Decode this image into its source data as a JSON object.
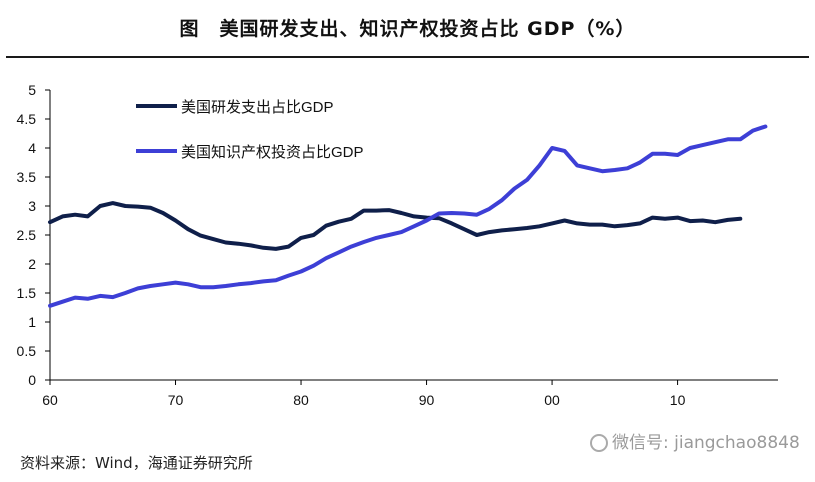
{
  "title": "图　美国研发支出、知识产权投资占比 GDP（%）",
  "source": "资料来源：Wind，海通证券研究所",
  "watermark": "微信号: jiangchao8848",
  "colors": {
    "rd": "#0f1f4a",
    "ip": "#3d3fd6",
    "axis": "#000000"
  },
  "chart_data": {
    "type": "line",
    "title": "美国研发支出、知识产权投资占比 GDP（%）",
    "xlabel": "",
    "ylabel": "",
    "xlim": [
      1960,
      2018
    ],
    "ylim": [
      0,
      5
    ],
    "x_ticks": [
      1960,
      1970,
      1980,
      1990,
      2000,
      2010
    ],
    "x_tick_labels": [
      "60",
      "70",
      "80",
      "90",
      "00",
      "10"
    ],
    "y_ticks": [
      0,
      0.5,
      1,
      1.5,
      2,
      2.5,
      3,
      3.5,
      4,
      4.5,
      5
    ],
    "y_tick_labels": [
      "0",
      "0.5",
      "1",
      "1.5",
      "2",
      "2.5",
      "3",
      "3.5",
      "4",
      "4.5",
      "5"
    ],
    "grid": false,
    "legend": "top-left",
    "series": [
      {
        "name": "美国研发支出占比GDP",
        "color": "#0f1f4a",
        "x": [
          1960,
          1961,
          1962,
          1963,
          1964,
          1965,
          1966,
          1967,
          1968,
          1969,
          1970,
          1971,
          1972,
          1973,
          1974,
          1975,
          1976,
          1977,
          1978,
          1979,
          1980,
          1981,
          1982,
          1983,
          1984,
          1985,
          1986,
          1987,
          1988,
          1989,
          1990,
          1991,
          1992,
          1993,
          1994,
          1995,
          1996,
          1997,
          1998,
          1999,
          2000,
          2001,
          2002,
          2003,
          2004,
          2005,
          2006,
          2007,
          2008,
          2009,
          2010,
          2011,
          2012,
          2013,
          2014,
          2015
        ],
        "values": [
          2.72,
          2.82,
          2.85,
          2.82,
          3.0,
          3.05,
          3.0,
          2.99,
          2.97,
          2.88,
          2.75,
          2.6,
          2.49,
          2.43,
          2.37,
          2.35,
          2.32,
          2.28,
          2.26,
          2.3,
          2.45,
          2.5,
          2.66,
          2.73,
          2.78,
          2.92,
          2.92,
          2.93,
          2.88,
          2.82,
          2.8,
          2.79,
          2.7,
          2.6,
          2.5,
          2.55,
          2.58,
          2.6,
          2.62,
          2.65,
          2.7,
          2.75,
          2.7,
          2.68,
          2.68,
          2.65,
          2.67,
          2.7,
          2.8,
          2.78,
          2.8,
          2.74,
          2.75,
          2.72,
          2.76,
          2.78
        ]
      },
      {
        "name": "美国知识产权投资占比GDP",
        "color": "#3d3fd6",
        "x": [
          1960,
          1961,
          1962,
          1963,
          1964,
          1965,
          1966,
          1967,
          1968,
          1969,
          1970,
          1971,
          1972,
          1973,
          1974,
          1975,
          1976,
          1977,
          1978,
          1979,
          1980,
          1981,
          1982,
          1983,
          1984,
          1985,
          1986,
          1987,
          1988,
          1989,
          1990,
          1991,
          1992,
          1993,
          1994,
          1995,
          1996,
          1997,
          1998,
          1999,
          2000,
          2001,
          2002,
          2003,
          2004,
          2005,
          2006,
          2007,
          2008,
          2009,
          2010,
          2011,
          2012,
          2013,
          2014,
          2015,
          2016,
          2017
        ],
        "values": [
          1.28,
          1.35,
          1.42,
          1.4,
          1.45,
          1.43,
          1.5,
          1.58,
          1.62,
          1.65,
          1.68,
          1.65,
          1.6,
          1.6,
          1.62,
          1.65,
          1.67,
          1.7,
          1.72,
          1.8,
          1.87,
          1.97,
          2.1,
          2.2,
          2.3,
          2.38,
          2.45,
          2.5,
          2.55,
          2.65,
          2.75,
          2.87,
          2.88,
          2.87,
          2.85,
          2.95,
          3.1,
          3.3,
          3.45,
          3.7,
          4.0,
          3.95,
          3.7,
          3.65,
          3.6,
          3.62,
          3.65,
          3.75,
          3.9,
          3.9,
          3.88,
          4.0,
          4.05,
          4.1,
          4.15,
          4.15,
          4.3,
          4.37
        ]
      }
    ]
  }
}
